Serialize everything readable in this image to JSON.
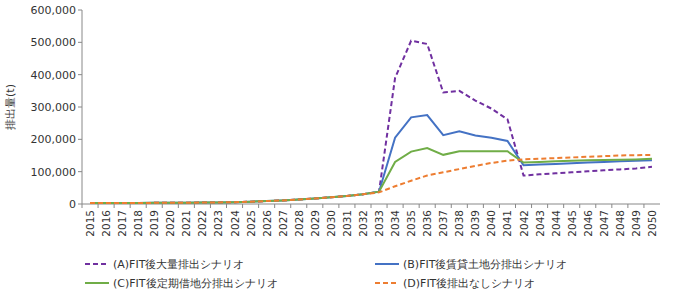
{
  "chart_data": {
    "type": "line",
    "y_label": "排出量(t)",
    "categories": [
      "2015",
      "2016",
      "2017",
      "2018",
      "2019",
      "2020",
      "2021",
      "2022",
      "2023",
      "2024",
      "2025",
      "2026",
      "2027",
      "2028",
      "2029",
      "2030",
      "2031",
      "2032",
      "2033",
      "2034",
      "2035",
      "2036",
      "2037",
      "2038",
      "2039",
      "2040",
      "2041",
      "2042",
      "2043",
      "2044",
      "2045",
      "2046",
      "2047",
      "2048",
      "2049",
      "2050"
    ],
    "series": [
      {
        "name": "(A)FIT後大量排出シナリオ",
        "color": "#7030a0",
        "line_style": "dashed",
        "values": [
          3000,
          3000,
          3000,
          3000,
          3500,
          4000,
          4000,
          4500,
          5000,
          5500,
          7000,
          9000,
          11000,
          14000,
          17000,
          21000,
          25000,
          30000,
          38000,
          390000,
          505000,
          495000,
          345000,
          350000,
          320000,
          295000,
          262000,
          88000,
          92000,
          95000,
          98000,
          101000,
          104000,
          107000,
          110000,
          115000
        ]
      },
      {
        "name": "(B)FIT後賃貸土地分排出シナリオ",
        "color": "#4472c4",
        "line_style": "solid",
        "values": [
          3000,
          3000,
          3000,
          3000,
          3500,
          4000,
          4000,
          4500,
          5000,
          5500,
          7000,
          9000,
          11000,
          14000,
          17000,
          21000,
          25000,
          30000,
          38000,
          205000,
          268000,
          275000,
          213000,
          225000,
          212000,
          205000,
          195000,
          120000,
          122000,
          124000,
          126000,
          128000,
          130000,
          132000,
          134000,
          135000
        ]
      },
      {
        "name": "(C)FIT後定期借地分排出シナリオ",
        "color": "#70ad47",
        "line_style": "solid",
        "values": [
          3000,
          3000,
          3000,
          3000,
          3500,
          4000,
          4000,
          4500,
          5000,
          5500,
          7000,
          9000,
          11000,
          14000,
          17000,
          21000,
          25000,
          30000,
          38000,
          130000,
          162000,
          173000,
          152000,
          163000,
          163000,
          163000,
          163000,
          128000,
          130000,
          132000,
          134000,
          135000,
          136000,
          137000,
          138000,
          140000
        ]
      },
      {
        "name": "(D)FIT後排出なしシナリオ",
        "color": "#ed7d31",
        "line_style": "dashed",
        "values": [
          3000,
          3000,
          3000,
          3000,
          3500,
          4000,
          4000,
          4500,
          5000,
          5500,
          7000,
          9000,
          11000,
          14000,
          17000,
          21000,
          25000,
          30000,
          36000,
          55000,
          72000,
          88000,
          98000,
          108000,
          118000,
          127000,
          134000,
          138000,
          140000,
          142000,
          144000,
          146000,
          148000,
          150000,
          151000,
          152000
        ]
      }
    ],
    "ylim": [
      0,
      600000
    ],
    "yticks": [
      0,
      {
        "value": 100000,
        "label": "100,000"
      },
      {
        "value": 200000,
        "label": "200,000"
      },
      {
        "value": 300000,
        "label": "300,000"
      },
      {
        "value": 400000,
        "label": "400,000"
      },
      {
        "value": 500000,
        "label": "500,000"
      },
      {
        "value": 600000,
        "label": "600,000"
      }
    ],
    "grid": false,
    "legend": "bottom"
  }
}
